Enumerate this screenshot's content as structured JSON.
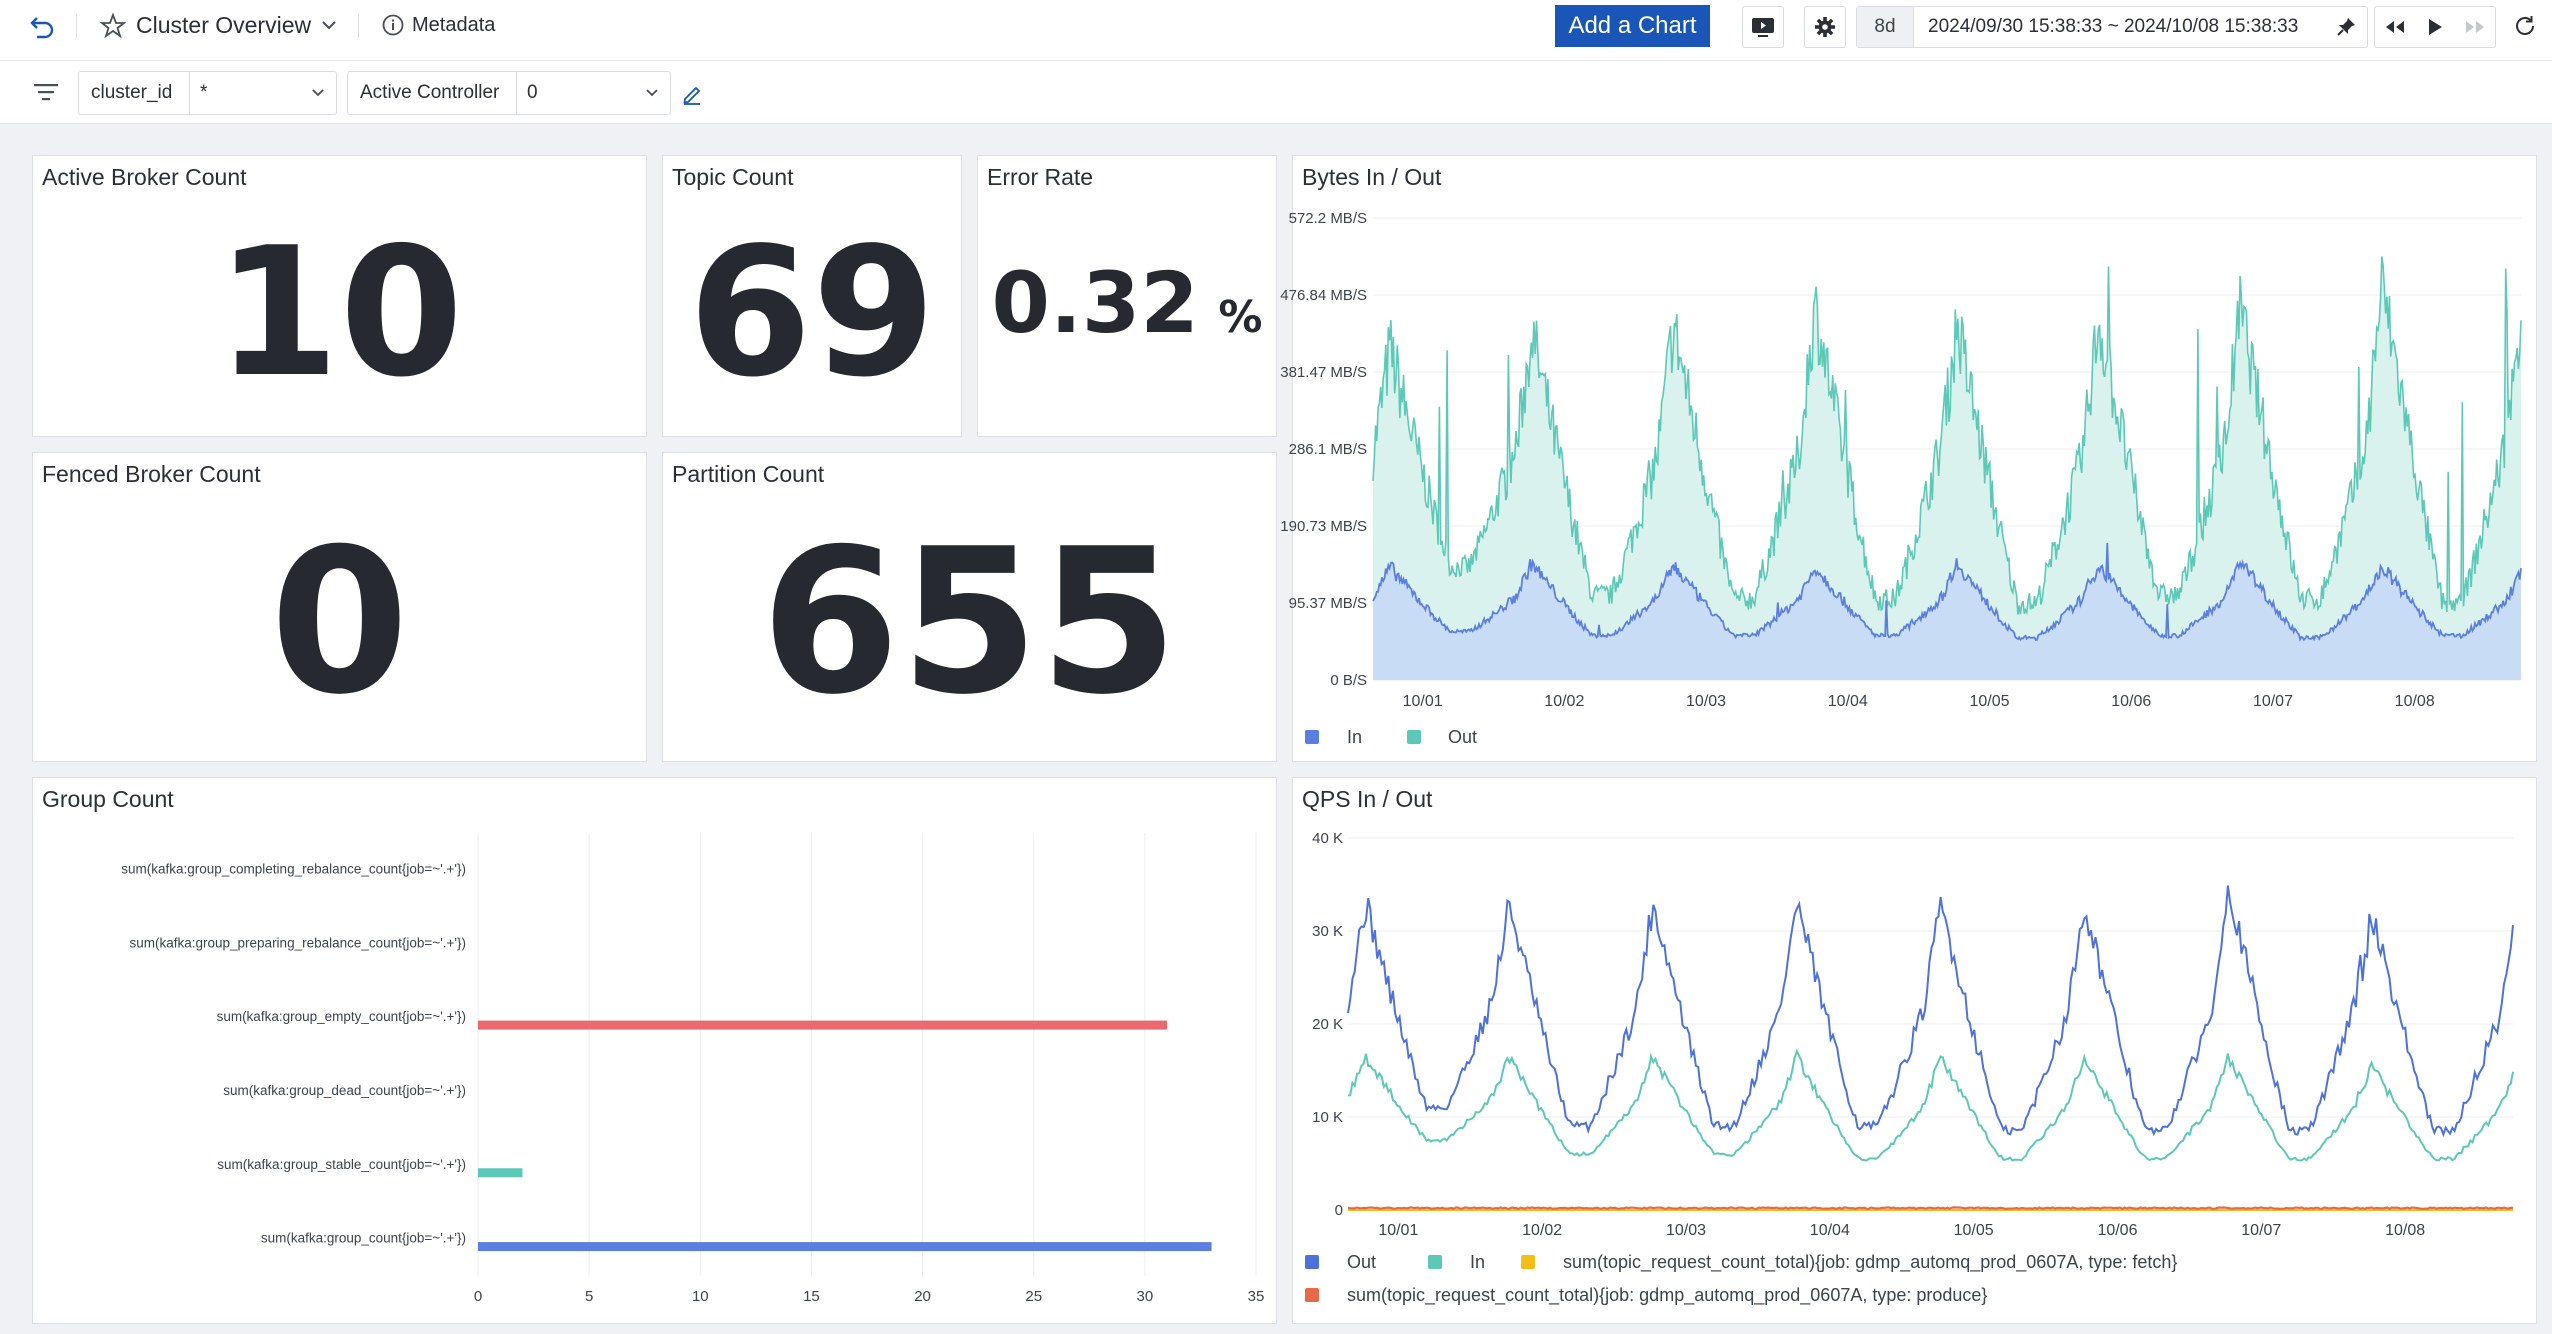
{
  "header": {
    "title": "Cluster Overview",
    "metadata_label": "Metadata",
    "add_chart_label": "Add a Chart",
    "duration": "8d",
    "time_range": "2024/09/30 15:38:33 ~ 2024/10/08 15:38:33"
  },
  "filters": [
    {
      "label": "cluster_id",
      "value": "*"
    },
    {
      "label": "Active Controller",
      "value": "0"
    }
  ],
  "stats": {
    "active_broker": {
      "title": "Active Broker Count",
      "value": "10"
    },
    "topic_count": {
      "title": "Topic Count",
      "value": "69"
    },
    "error_rate": {
      "title": "Error Rate",
      "value": "0.32",
      "unit": "%"
    },
    "fenced_broker": {
      "title": "Fenced Broker Count",
      "value": "0"
    },
    "partition_count": {
      "title": "Partition Count",
      "value": "655"
    }
  },
  "colors": {
    "in_blue": "#5b8ff9",
    "out_teal": "#5ad8a6",
    "bytes_in": "#5b7fe0",
    "bytes_out": "#5cc9b6",
    "qps_out": "#4e72dc",
    "qps_in": "#5cc9b6",
    "fetch": "#f6bd16",
    "produce": "#e8684a",
    "bar_red": "#e86a6f",
    "bar_teal": "#5cc9b6",
    "bar_blue": "#5b7fe0"
  },
  "chart_data": [
    {
      "id": "bytes",
      "type": "area",
      "title": "Bytes In / Out",
      "x": [
        "10/01",
        "10/02",
        "10/03",
        "10/04",
        "10/05",
        "10/06",
        "10/07",
        "10/08"
      ],
      "y_ticks": [
        "0 B/S",
        "95.37 MB/S",
        "190.73 MB/S",
        "286.1 MB/S",
        "381.47 MB/S",
        "476.84 MB/S",
        "572.2 MB/S"
      ],
      "ylim": [
        0,
        572.2
      ],
      "legend": "bottom-left",
      "series": [
        {
          "name": "In",
          "peak_values": [
            140,
            145,
            142,
            140,
            145,
            142,
            148,
            140
          ],
          "trough_values": [
            60,
            55,
            55,
            55,
            52,
            55,
            52,
            55
          ]
        },
        {
          "name": "Out",
          "peak_values": [
            410,
            430,
            440,
            460,
            440,
            445,
            460,
            490
          ],
          "trough_values": [
            140,
            105,
            100,
            100,
            95,
            105,
            100,
            95
          ]
        }
      ]
    },
    {
      "id": "group",
      "type": "bar",
      "title": "Group Count",
      "categories": [
        "sum(kafka:group_completing_rebalance_count{job=~'.+'})",
        "sum(kafka:group_preparing_rebalance_count{job=~'.+'})",
        "sum(kafka:group_empty_count{job=~'.+'})",
        "sum(kafka:group_dead_count{job=~'.+'})",
        "sum(kafka:group_stable_count{job=~'.+'})",
        "sum(kafka:group_count{job=~'.+'})"
      ],
      "values": [
        0,
        0,
        31,
        0,
        2,
        33
      ],
      "x_ticks": [
        "0",
        "5",
        "10",
        "15",
        "20",
        "25",
        "30",
        "35"
      ],
      "xlim": [
        0,
        35
      ]
    },
    {
      "id": "qps",
      "type": "line",
      "title": "QPS In / Out",
      "x": [
        "10/01",
        "10/02",
        "10/03",
        "10/04",
        "10/05",
        "10/06",
        "10/07",
        "10/08"
      ],
      "y_ticks": [
        "0",
        "10 K",
        "20 K",
        "30 K",
        "40 K"
      ],
      "ylim": [
        0,
        40000
      ],
      "legend": "bottom-left",
      "series": [
        {
          "name": "Out",
          "peak_values": [
            33000,
            33000,
            33000,
            33000,
            33000,
            33000,
            35000,
            32000
          ],
          "trough_values": [
            11000,
            9000,
            9000,
            9000,
            8500,
            8500,
            8500,
            8500
          ]
        },
        {
          "name": "In",
          "peak_values": [
            16500,
            16500,
            16500,
            16500,
            16500,
            16500,
            16500,
            15500
          ],
          "trough_values": [
            7500,
            6000,
            6000,
            5500,
            5500,
            5500,
            5500,
            5500
          ]
        },
        {
          "name": "sum(topic_request_count_total){job: gdmp_automq_prod_0607A, type: fetch}",
          "values": [
            0,
            0,
            0,
            0,
            0,
            0,
            0,
            0
          ]
        },
        {
          "name": "sum(topic_request_count_total){job: gdmp_automq_prod_0607A, type: produce}",
          "values": [
            200,
            200,
            200,
            200,
            200,
            200,
            200,
            200
          ]
        }
      ]
    }
  ]
}
